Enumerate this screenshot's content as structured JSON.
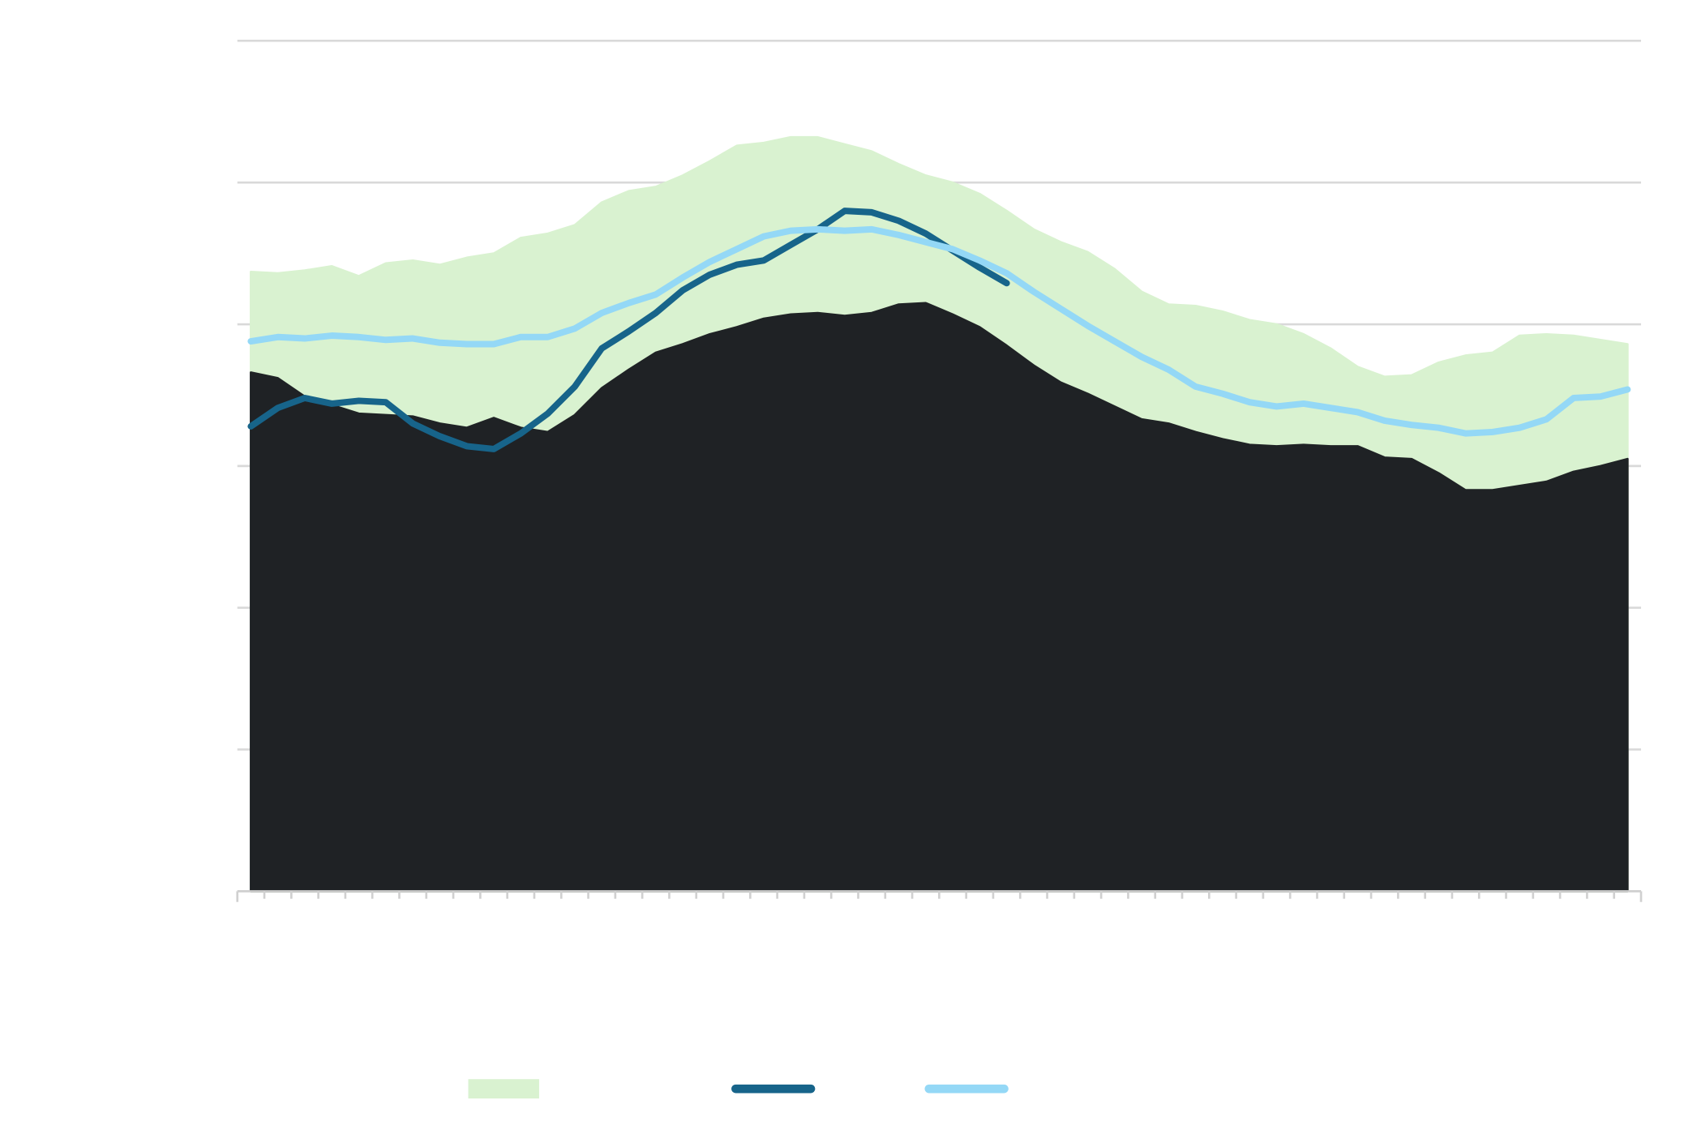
{
  "chart_data": {
    "type": "line",
    "categories": [
      null,
      null,
      null,
      null,
      null,
      null,
      null,
      null,
      null,
      null,
      null,
      null,
      null,
      null,
      null,
      null,
      null,
      null,
      null,
      null,
      null,
      null,
      null,
      null,
      null,
      null,
      null,
      null,
      null,
      null,
      null,
      null,
      null,
      null,
      null,
      null,
      null,
      null,
      null,
      null,
      null,
      null,
      null,
      null,
      null,
      null,
      null,
      null,
      null,
      null,
      null,
      null
    ],
    "ylim": [
      0,
      6
    ],
    "yticks": [
      0,
      1,
      2,
      3,
      4,
      5,
      6
    ],
    "grid": true,
    "legend": "bottom",
    "series": [
      {
        "type": "area",
        "color": "#d9f2d0",
        "values": [
          4.37,
          4.36,
          4.38,
          4.41,
          4.34,
          4.43,
          4.45,
          4.42,
          4.47,
          4.5,
          4.61,
          4.64,
          4.7,
          4.86,
          4.94,
          4.97,
          5.05,
          5.15,
          5.26,
          5.28,
          5.32,
          5.32,
          5.27,
          5.22,
          5.13,
          5.05,
          5.0,
          4.92,
          4.8,
          4.67,
          4.58,
          4.51,
          4.39,
          4.23,
          4.14,
          4.13,
          4.09,
          4.03,
          4.0,
          3.93,
          3.83,
          3.7,
          3.63,
          3.64,
          3.73,
          3.78,
          3.8,
          3.92,
          3.93,
          3.92,
          3.89,
          3.86
        ]
      },
      {
        "type": "area",
        "color": "#1f2225",
        "values": [
          3.66,
          3.62,
          3.49,
          3.43,
          3.37,
          3.36,
          3.35,
          3.3,
          3.27,
          3.34,
          3.27,
          3.24,
          3.36,
          3.55,
          3.68,
          3.8,
          3.86,
          3.93,
          3.98,
          4.04,
          4.07,
          4.08,
          4.06,
          4.08,
          4.14,
          4.15,
          4.07,
          3.98,
          3.85,
          3.71,
          3.59,
          3.51,
          3.42,
          3.33,
          3.3,
          3.24,
          3.19,
          3.15,
          3.14,
          3.15,
          3.14,
          3.14,
          3.06,
          3.05,
          2.95,
          2.83,
          2.83,
          2.86,
          2.89,
          2.96,
          3.0,
          3.05
        ]
      },
      {
        "type": "line",
        "color": "#17648a",
        "values": [
          3.28,
          3.41,
          3.48,
          3.44,
          3.46,
          3.45,
          3.3,
          3.21,
          3.14,
          3.12,
          3.23,
          3.37,
          3.56,
          3.83,
          3.95,
          4.08,
          4.24,
          4.35,
          4.42,
          4.45,
          4.56,
          4.67,
          4.8,
          4.79,
          4.73,
          4.64,
          4.52,
          4.4,
          4.29,
          null,
          null,
          null,
          null,
          null,
          null,
          null,
          null,
          null,
          null,
          null,
          null,
          null,
          null,
          null,
          null,
          null,
          null,
          null,
          null,
          null,
          null,
          null
        ]
      },
      {
        "type": "line",
        "color": "#94d8f6",
        "values": [
          3.88,
          3.91,
          3.9,
          3.92,
          3.91,
          3.89,
          3.9,
          3.87,
          3.86,
          3.86,
          3.91,
          3.91,
          3.97,
          4.08,
          4.15,
          4.21,
          4.33,
          4.44,
          4.53,
          4.62,
          4.66,
          4.67,
          4.66,
          4.67,
          4.63,
          4.58,
          4.53,
          4.45,
          4.36,
          4.23,
          4.11,
          3.99,
          3.88,
          3.77,
          3.68,
          3.56,
          3.51,
          3.45,
          3.42,
          3.44,
          3.41,
          3.38,
          3.32,
          3.29,
          3.27,
          3.23,
          3.24,
          3.27,
          3.33,
          3.48,
          3.49,
          3.54
        ]
      }
    ]
  }
}
